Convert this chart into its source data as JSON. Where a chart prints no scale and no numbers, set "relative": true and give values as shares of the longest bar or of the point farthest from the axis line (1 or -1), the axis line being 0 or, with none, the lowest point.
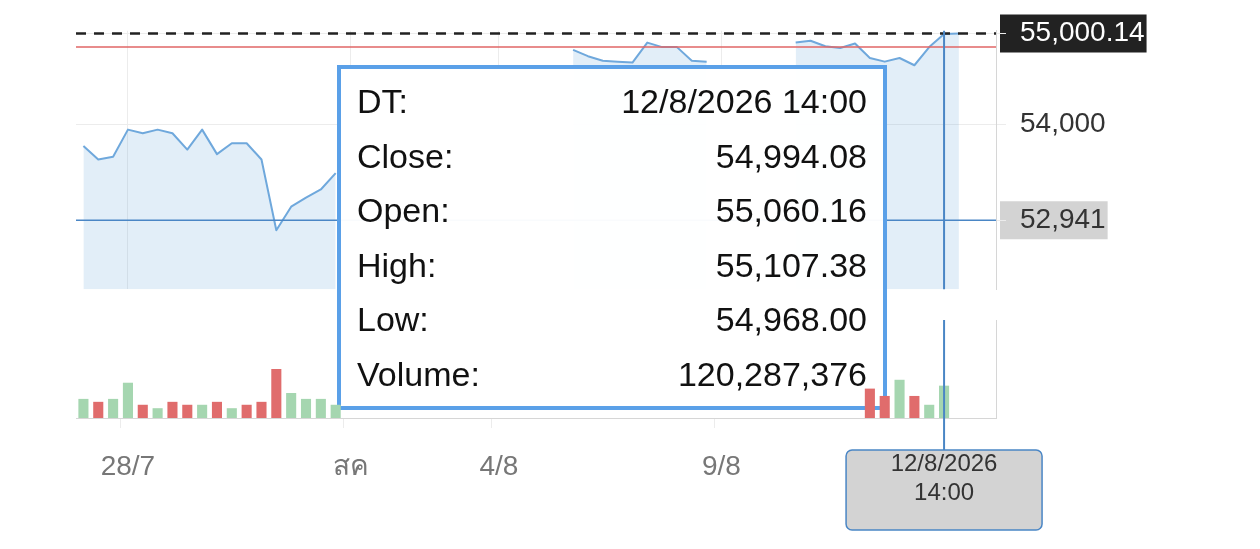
{
  "chart_data": [
    {
      "type": "area",
      "categories": [
        null,
        null,
        null,
        "28/7",
        null,
        null,
        null,
        null,
        null,
        null,
        null,
        null,
        null,
        null,
        null,
        null,
        null,
        null,
        "สค",
        null,
        null,
        null,
        null,
        null,
        null,
        null,
        null,
        null,
        "4/8",
        null,
        null,
        null,
        null,
        null,
        null,
        null,
        null,
        null,
        null,
        null,
        null,
        null,
        null,
        "9/8",
        null,
        null,
        null,
        null,
        null,
        null,
        null,
        null,
        null,
        null,
        null,
        null,
        null,
        null,
        "12/8/2026 14:00",
        null,
        null,
        null
      ],
      "series": [
        {
          "color": "#6fa8dc",
          "values": [
            53760,
            53610,
            53640,
            53940,
            53900,
            53940,
            53900,
            53720,
            53940,
            53670,
            53790,
            53790,
            53610,
            52830,
            53090,
            53190,
            53280,
            53460,
            null,
            null,
            null,
            null,
            null,
            null,
            null,
            null,
            null,
            null,
            null,
            null,
            null,
            null,
            null,
            54820,
            54750,
            54700,
            54690,
            54680,
            54900,
            54850,
            54850,
            54700,
            54690,
            null,
            null,
            null,
            null,
            null,
            54900,
            54920,
            54860,
            54840,
            54890,
            54730,
            54690,
            54730,
            54650,
            54850,
            54994.08,
            55000.14,
            null,
            null
          ]
        }
      ],
      "ylim": [
        52180,
        55030
      ],
      "yticks": [
        {
          "value": 52941,
          "label": "52,941"
        },
        {
          "value": 54000,
          "label": "54,000"
        },
        {
          "value": 55000.14,
          "label": "55,000.14"
        }
      ],
      "grid": true,
      "tick_labels": "y",
      "ref_lines": [
        {
          "axis": "y",
          "value": 54850,
          "color": "#e06666"
        },
        {
          "axis": "y",
          "value": 55000.14,
          "color": "#222222",
          "line_style": "dashed"
        },
        {
          "axis": "y",
          "value": 52941,
          "color": "#4a86c5"
        },
        {
          "axis": "x",
          "value": "12/8/2026 14:00",
          "color": "#4a86c5"
        }
      ],
      "annotations": [
        "DT:",
        "12/8/2026 14:00",
        "Close:",
        "54,994.08",
        "Open:",
        "55,060.16",
        "High:",
        "55,107.38",
        "Low:",
        "54,968.00",
        "Volume:",
        "120,287,376"
      ]
    },
    {
      "type": "bar",
      "relative": true,
      "tick_labels": "x",
      "categories": [
        null,
        null,
        null,
        "28/7",
        null,
        null,
        null,
        null,
        null,
        null,
        null,
        null,
        null,
        null,
        null,
        null,
        null,
        null,
        "สค",
        null,
        null,
        null,
        null,
        null,
        null,
        null,
        null,
        null,
        "4/8",
        null,
        null,
        null,
        null,
        null,
        null,
        null,
        null,
        null,
        null,
        null,
        null,
        null,
        null,
        "9/8",
        null,
        null,
        null,
        null,
        null,
        null,
        null,
        null,
        null,
        null,
        null,
        null,
        null,
        null,
        "12/8/2026 14:00",
        null,
        null,
        null
      ],
      "values": [
        0.39,
        0.33,
        0.39,
        0.72,
        0.27,
        0.2,
        0.33,
        0.27,
        0.27,
        0.33,
        0.2,
        0.27,
        0.33,
        1,
        0.51,
        0.39,
        0.39,
        0.27,
        null,
        null,
        null,
        null,
        null,
        null,
        null,
        null,
        null,
        null,
        null,
        null,
        null,
        null,
        null,
        null,
        null,
        null,
        null,
        null,
        null,
        null,
        null,
        null,
        null,
        null,
        null,
        null,
        null,
        null,
        null,
        null,
        null,
        null,
        null,
        0.6,
        0.45,
        0.78,
        0.45,
        0.27,
        0.66,
        null,
        null,
        null
      ],
      "colors": [
        "#a5d6b0",
        "#e06c6c",
        "#a5d6b0",
        "#a5d6b0",
        "#e06c6c",
        "#a5d6b0",
        "#e06c6c",
        "#e06c6c",
        "#a5d6b0",
        "#e06c6c",
        "#a5d6b0",
        "#e06c6c",
        "#e06c6c",
        "#e06c6c",
        "#a5d6b0",
        "#a5d6b0",
        "#a5d6b0",
        "#a5d6b0",
        null,
        null,
        null,
        null,
        null,
        null,
        null,
        null,
        null,
        null,
        null,
        null,
        null,
        null,
        null,
        null,
        null,
        null,
        null,
        null,
        null,
        null,
        null,
        null,
        null,
        null,
        null,
        null,
        null,
        null,
        null,
        null,
        null,
        null,
        null,
        "#e06c6c",
        "#e06c6c",
        "#a5d6b0",
        "#e06c6c",
        "#a5d6b0",
        "#a5d6b0",
        null,
        null,
        null
      ],
      "ref_lines": [
        {
          "axis": "x",
          "value": "12/8/2026 14:00",
          "color": "#4a86c5"
        }
      ]
    }
  ]
}
